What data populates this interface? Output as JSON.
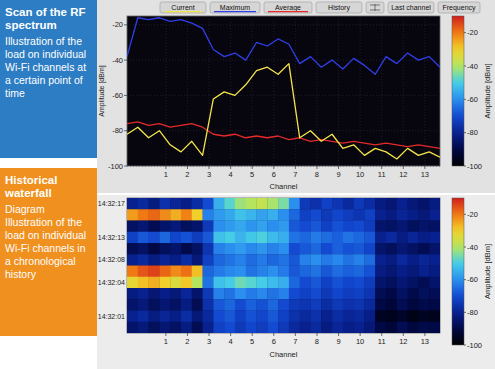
{
  "panels": [
    {
      "title": "Scan of the RF spectrum",
      "text": "Illustration of the load on individual Wi-Fi channels at a certain point of time"
    },
    {
      "title": "Historical waterfall",
      "text": "Diagram Illustration of the load on individual Wi-Fi channels in a chronological history"
    }
  ],
  "toolbar": [
    "History",
    "Last channel",
    "Frequency"
  ],
  "chart_data": [
    {
      "type": "line",
      "x_label": "Channel",
      "y_label": "Amplitude [dBm]",
      "x": [
        -0.8,
        -0.3,
        0.2,
        0.7,
        1.2,
        1.7,
        2.2,
        2.7,
        3.2,
        3.7,
        4.2,
        4.7,
        5.2,
        5.7,
        6.2,
        6.7,
        7.2,
        7.7,
        8.2,
        8.7,
        9.2,
        9.7,
        10.2,
        10.7,
        11.2,
        11.7,
        12.2,
        12.7,
        13.2,
        13.7
      ],
      "series": [
        {
          "name": "Current",
          "color": "#f4e64a",
          "values": [
            -82,
            -78,
            -84,
            -80,
            -88,
            -92,
            -86,
            -94,
            -62,
            -58,
            -60,
            -54,
            -46,
            -44,
            -48,
            -42,
            -84,
            -80,
            -86,
            -82,
            -90,
            -88,
            -94,
            -90,
            -92,
            -96,
            -90,
            -94,
            -92,
            -95
          ]
        },
        {
          "name": "Maximum",
          "color": "#2f3fe8",
          "values": [
            -38,
            -16,
            -17,
            -16,
            -18,
            -17,
            -19,
            -22,
            -34,
            -38,
            -36,
            -40,
            -30,
            -32,
            -28,
            -31,
            -42,
            -38,
            -44,
            -40,
            -45,
            -39,
            -43,
            -48,
            -38,
            -42,
            -36,
            -40,
            -38,
            -44
          ]
        },
        {
          "name": "Average",
          "color": "#e52a2a",
          "values": [
            -76,
            -75,
            -77,
            -76,
            -78,
            -77,
            -76,
            -78,
            -82,
            -83,
            -82,
            -84,
            -83,
            -84,
            -83,
            -85,
            -84,
            -86,
            -85,
            -86,
            -87,
            -86,
            -87,
            -88,
            -87,
            -88,
            -89,
            -88,
            -89,
            -90
          ]
        }
      ],
      "xlim": [
        -0.8,
        13.7
      ],
      "xticks": [
        1,
        2,
        3,
        4,
        5,
        6,
        7,
        8,
        9,
        10,
        11,
        12,
        13
      ],
      "ylim": [
        -100,
        -15
      ],
      "yticks": [
        -100,
        -80,
        -60,
        -40,
        -20
      ],
      "grid": true,
      "legend": "top",
      "colorbar": {
        "label": "Amplitude [dBm]",
        "range": [
          -100,
          -10
        ],
        "ticks": [
          -100,
          -80,
          -60,
          -40,
          -20
        ]
      }
    },
    {
      "type": "heatmap",
      "x_label": "Channel",
      "x_edges": [
        -0.8,
        -0.3,
        0.2,
        0.7,
        1.2,
        1.7,
        2.2,
        2.7,
        3.2,
        3.7,
        4.2,
        4.7,
        5.2,
        5.7,
        6.2,
        6.7,
        7.2,
        7.7,
        8.2,
        8.7,
        9.2,
        9.7,
        10.2,
        10.7,
        11.2,
        11.7,
        12.2,
        12.7,
        13.2,
        13.7
      ],
      "xlim": [
        -0.8,
        13.7
      ],
      "xticks": [
        1,
        2,
        3,
        4,
        5,
        6,
        7,
        8,
        9,
        10,
        11,
        12,
        13
      ],
      "rows": [
        "14:32:17",
        null,
        null,
        "14:32:13",
        null,
        "14:32:08",
        null,
        "14:32:04",
        null,
        null,
        "14:32:01",
        null
      ],
      "cells": [
        [
          -80,
          -78,
          -82,
          -76,
          -79,
          -81,
          -77,
          -70,
          -55,
          -48,
          -42,
          -40,
          -38,
          -41,
          -45,
          -60,
          -74,
          -76,
          -72,
          -75,
          -78,
          -74,
          -77,
          -82,
          -84,
          -80,
          -83,
          -85,
          -82
        ],
        [
          -24,
          -20,
          -18,
          -22,
          -26,
          -21,
          -30,
          -62,
          -58,
          -56,
          -52,
          -54,
          -57,
          -55,
          -60,
          -66,
          -72,
          -70,
          -74,
          -71,
          -73,
          -75,
          -72,
          -80,
          -82,
          -79,
          -81,
          -83,
          -80
        ],
        [
          -86,
          -84,
          -88,
          -85,
          -83,
          -87,
          -85,
          -74,
          -60,
          -58,
          -56,
          -59,
          -57,
          -60,
          -58,
          -68,
          -70,
          -68,
          -72,
          -69,
          -71,
          -70,
          -73,
          -85,
          -86,
          -84,
          -87,
          -85,
          -86
        ],
        [
          -72,
          -68,
          -70,
          -66,
          -71,
          -69,
          -73,
          -68,
          -52,
          -50,
          -54,
          -51,
          -49,
          -53,
          -55,
          -64,
          -66,
          -63,
          -65,
          -67,
          -64,
          -66,
          -68,
          -80,
          -78,
          -82,
          -79,
          -81,
          -80
        ],
        [
          -88,
          -86,
          -90,
          -87,
          -85,
          -89,
          -86,
          -75,
          -62,
          -60,
          -58,
          -61,
          -59,
          -62,
          -60,
          -70,
          -68,
          -66,
          -70,
          -67,
          -69,
          -68,
          -71,
          -85,
          -87,
          -84,
          -86,
          -88,
          -85
        ],
        [
          -80,
          -78,
          -82,
          -79,
          -81,
          -77,
          -83,
          -72,
          -66,
          -64,
          -62,
          -65,
          -63,
          -66,
          -64,
          -68,
          -62,
          -60,
          -63,
          -61,
          -64,
          -62,
          -65,
          -80,
          -82,
          -78,
          -81,
          -79,
          -80
        ],
        [
          -20,
          -16,
          -14,
          -18,
          -22,
          -19,
          -28,
          -66,
          -63,
          -61,
          -60,
          -64,
          -62,
          -60,
          -63,
          -68,
          -66,
          -64,
          -68,
          -65,
          -67,
          -66,
          -69,
          -82,
          -84,
          -81,
          -83,
          -80,
          -82
        ],
        [
          -32,
          -28,
          -26,
          -30,
          -34,
          -29,
          -40,
          -64,
          -52,
          -50,
          -46,
          -48,
          -50,
          -53,
          -55,
          -66,
          -70,
          -68,
          -72,
          -69,
          -71,
          -70,
          -73,
          -85,
          -87,
          -84,
          -86,
          -88,
          -85
        ],
        [
          -82,
          -80,
          -84,
          -81,
          -83,
          -79,
          -85,
          -74,
          -62,
          -64,
          -60,
          -63,
          -61,
          -64,
          -62,
          -70,
          -72,
          -70,
          -74,
          -71,
          -73,
          -72,
          -75,
          -88,
          -90,
          -86,
          -89,
          -87,
          -88
        ],
        [
          -85,
          -83,
          -87,
          -84,
          -86,
          -82,
          -88,
          -76,
          -68,
          -66,
          -70,
          -67,
          -69,
          -66,
          -70,
          -74,
          -75,
          -73,
          -77,
          -74,
          -76,
          -75,
          -78,
          -90,
          -92,
          -88,
          -91,
          -89,
          -90
        ],
        [
          -80,
          -78,
          -82,
          -79,
          -81,
          -77,
          -83,
          -78,
          -70,
          -68,
          -72,
          -69,
          -71,
          -68,
          -72,
          -76,
          -78,
          -76,
          -80,
          -77,
          -79,
          -78,
          -81,
          -95,
          -96,
          -94,
          -97,
          -95,
          -96
        ],
        [
          -85,
          -83,
          -87,
          -84,
          -86,
          -82,
          -88,
          -80,
          -72,
          -70,
          -74,
          -71,
          -73,
          -70,
          -74,
          -78,
          -80,
          -78,
          -82,
          -79,
          -81,
          -80,
          -83,
          -90,
          -92,
          -88,
          -91,
          -89,
          -90
        ]
      ],
      "colorbar": {
        "label": "Amplitude [dBm]",
        "range": [
          -100,
          -10
        ],
        "ticks": [
          -100,
          -80,
          -60,
          -40,
          -20
        ]
      }
    }
  ]
}
